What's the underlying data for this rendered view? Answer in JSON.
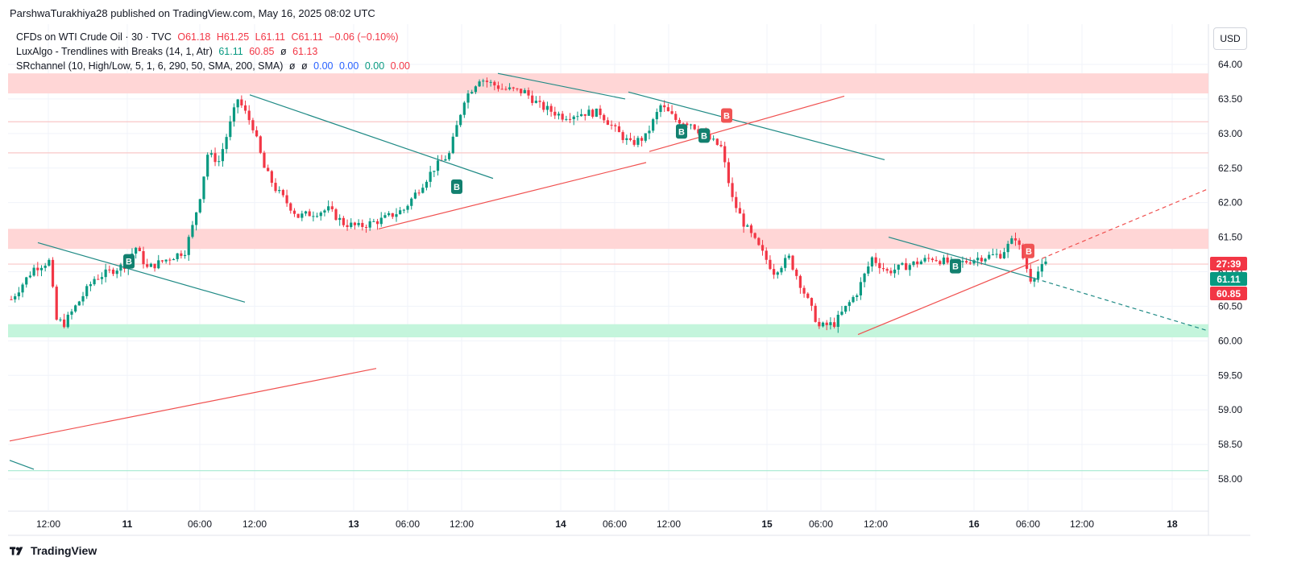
{
  "header": {
    "publisher": "ParshwaTurakhiya28 published on TradingView.com, May 16, 2025 08:02 UTC"
  },
  "legend": {
    "symbol_line": {
      "name": "CFDs on WTI Crude Oil · 30 · TVC",
      "open": "O61.18",
      "high": "H61.25",
      "low": "L61.11",
      "close": "C61.11",
      "change": "−0.06 (−0.10%)"
    },
    "luxalgo": {
      "name": "LuxAlgo - Trendlines with Breaks (14, 1, Atr)",
      "v1": "61.11",
      "v2": "60.85",
      "slash": "ø",
      "v3": "61.13"
    },
    "srchannel": {
      "name": "SRchannel (10, High/Low, 5, 1, 6, 290, 50, SMA, 200, SMA)",
      "slash1": "ø",
      "slash2": "ø",
      "v1": "0.00",
      "v2": "0.00",
      "v3": "0.00",
      "v4": "0.00"
    }
  },
  "currency_button": "USD",
  "price_labels": {
    "countdown": "27:39",
    "last": "61.11",
    "lux": "60.85"
  },
  "footer": {
    "brand": "TradingView"
  },
  "colors": {
    "up": "#089981",
    "down": "#f23645",
    "resistance_zone": "#ffd6d6",
    "support_zone": "#c4f5dc",
    "grid": "#f0f3fa"
  },
  "chart_data": {
    "type": "candlestick",
    "symbol": "CFDs on WTI Crude Oil",
    "interval": "30",
    "y_axis": {
      "range": [
        57.6,
        64.15
      ],
      "ticks": [
        "64.00",
        "63.50",
        "63.00",
        "62.50",
        "62.00",
        "61.50",
        "61.00",
        "60.50",
        "60.00",
        "59.50",
        "59.00",
        "58.50",
        "58.00"
      ],
      "tick_values": [
        64.0,
        63.5,
        63.0,
        62.5,
        62.0,
        61.5,
        61.0,
        60.5,
        60.0,
        59.5,
        59.0,
        58.5,
        58.0
      ]
    },
    "x_axis": {
      "ticks": [
        {
          "label": "12:00",
          "bold": false
        },
        {
          "label": "11",
          "bold": true
        },
        {
          "label": "06:00",
          "bold": false
        },
        {
          "label": "12:00",
          "bold": false
        },
        {
          "label": "13",
          "bold": true
        },
        {
          "label": "06:00",
          "bold": false
        },
        {
          "label": "12:00",
          "bold": false
        },
        {
          "label": "14",
          "bold": true
        },
        {
          "label": "06:00",
          "bold": false
        },
        {
          "label": "12:00",
          "bold": false
        },
        {
          "label": "15",
          "bold": true
        },
        {
          "label": "06:00",
          "bold": false
        },
        {
          "label": "12:00",
          "bold": false
        },
        {
          "label": "16",
          "bold": true
        },
        {
          "label": "06:00",
          "bold": false
        },
        {
          "label": "12:00",
          "bold": false
        },
        {
          "label": "18",
          "bold": true
        }
      ]
    },
    "zones": [
      {
        "type": "resistance",
        "from": 63.58,
        "to": 63.87
      },
      {
        "type": "resistance",
        "from": 61.33,
        "to": 61.62
      },
      {
        "type": "support",
        "from": 60.05,
        "to": 60.24
      }
    ],
    "levels": [
      {
        "type": "resistance",
        "value": 63.17
      },
      {
        "type": "resistance",
        "value": 62.72
      },
      {
        "type": "resistance",
        "value": 61.11
      },
      {
        "type": "support",
        "value": 58.12
      }
    ],
    "path_keypoints": [
      [
        0,
        60.6
      ],
      [
        6,
        61.05
      ],
      [
        10,
        61.15
      ],
      [
        12,
        60.3
      ],
      [
        14,
        60.25
      ],
      [
        22,
        60.9
      ],
      [
        30,
        61.1
      ],
      [
        33,
        61.35
      ],
      [
        36,
        61.05
      ],
      [
        40,
        61.15
      ],
      [
        46,
        61.3
      ],
      [
        48,
        61.65
      ],
      [
        50,
        62.1
      ],
      [
        52,
        62.7
      ],
      [
        55,
        62.6
      ],
      [
        60,
        63.5
      ],
      [
        64,
        63.1
      ],
      [
        67,
        62.5
      ],
      [
        70,
        62.2
      ],
      [
        76,
        61.8
      ],
      [
        84,
        61.9
      ],
      [
        88,
        61.7
      ],
      [
        92,
        61.65
      ],
      [
        98,
        61.75
      ],
      [
        104,
        61.9
      ],
      [
        108,
        62.2
      ],
      [
        112,
        62.5
      ],
      [
        116,
        62.7
      ],
      [
        120,
        63.5
      ],
      [
        124,
        63.8
      ],
      [
        130,
        63.65
      ],
      [
        136,
        63.6
      ],
      [
        140,
        63.4
      ],
      [
        146,
        63.25
      ],
      [
        152,
        63.3
      ],
      [
        156,
        63.3
      ],
      [
        160,
        63.05
      ],
      [
        164,
        62.85
      ],
      [
        168,
        62.95
      ],
      [
        172,
        63.4
      ],
      [
        176,
        63.2
      ],
      [
        180,
        63.15
      ],
      [
        184,
        62.95
      ],
      [
        188,
        62.8
      ],
      [
        191,
        62.05
      ],
      [
        194,
        61.7
      ],
      [
        198,
        61.35
      ],
      [
        202,
        61.0
      ],
      [
        206,
        61.2
      ],
      [
        210,
        60.7
      ],
      [
        214,
        60.2
      ],
      [
        218,
        60.25
      ],
      [
        224,
        60.7
      ],
      [
        228,
        61.2
      ],
      [
        232,
        61.0
      ],
      [
        238,
        61.1
      ],
      [
        244,
        61.2
      ],
      [
        250,
        61.1
      ],
      [
        256,
        61.2
      ],
      [
        262,
        61.25
      ],
      [
        266,
        61.5
      ],
      [
        270,
        60.9
      ],
      [
        274,
        61.11
      ]
    ],
    "trendlines": [
      {
        "color": "teal",
        "dash": false,
        "from": [
          47,
          61.42
        ],
        "to": [
          304,
          60.56
        ]
      },
      {
        "color": "teal",
        "dash": false,
        "from": [
          310,
          63.56
        ],
        "to": [
          612,
          62.35
        ]
      },
      {
        "color": "teal",
        "dash": false,
        "from": [
          618,
          63.87
        ],
        "to": [
          776,
          63.5
        ]
      },
      {
        "color": "teal",
        "dash": false,
        "from": [
          780,
          63.6
        ],
        "to": [
          1098,
          62.62
        ]
      },
      {
        "color": "teal",
        "dash": false,
        "from": [
          1103,
          61.5
        ],
        "to": [
          1285,
          60.9
        ]
      },
      {
        "color": "teal",
        "dash": true,
        "from": [
          1285,
          60.9
        ],
        "to": [
          1498,
          60.15
        ]
      },
      {
        "color": "teal",
        "dash": false,
        "from": [
          12,
          58.27
        ],
        "to": [
          42,
          58.14
        ]
      },
      {
        "color": "red",
        "dash": false,
        "from": [
          470,
          61.62
        ],
        "to": [
          802,
          62.58
        ]
      },
      {
        "color": "red",
        "dash": false,
        "from": [
          806,
          62.74
        ],
        "to": [
          1048,
          63.54
        ]
      },
      {
        "color": "red",
        "dash": false,
        "from": [
          1065,
          60.09
        ],
        "to": [
          1285,
          61.15
        ]
      },
      {
        "color": "red",
        "dash": true,
        "from": [
          1285,
          61.15
        ],
        "to": [
          1500,
          62.2
        ]
      },
      {
        "color": "red",
        "dash": false,
        "from": [
          12,
          58.55
        ],
        "to": [
          467,
          59.6
        ]
      }
    ],
    "markers": [
      {
        "type": "buy",
        "label": "B",
        "x": 160,
        "price": 61.15
      },
      {
        "type": "buy",
        "label": "B",
        "x": 567,
        "price": 62.23
      },
      {
        "type": "buy",
        "label": "B",
        "x": 846,
        "price": 63.03
      },
      {
        "type": "buy",
        "label": "B",
        "x": 874,
        "price": 62.97
      },
      {
        "type": "sell",
        "label": "B",
        "x": 902,
        "price": 63.26
      },
      {
        "type": "buy",
        "label": "B",
        "x": 1186,
        "price": 61.08
      },
      {
        "type": "sell",
        "label": "B",
        "x": 1277,
        "price": 61.3
      }
    ]
  }
}
